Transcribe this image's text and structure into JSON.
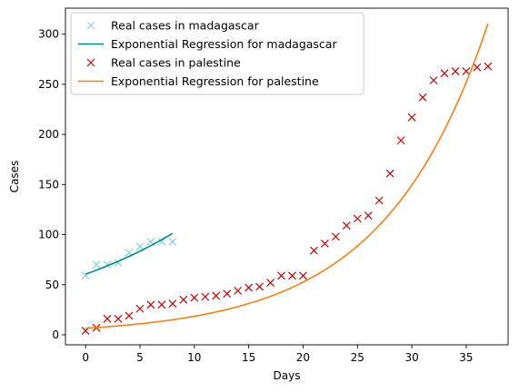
{
  "chart_data": {
    "type": "scatter",
    "xlabel": "Days",
    "ylabel": "Cases",
    "xlim": [
      -1.85,
      38.85
    ],
    "ylim": [
      -10,
      326
    ],
    "xticks": [
      0,
      5,
      10,
      15,
      20,
      25,
      30,
      35
    ],
    "yticks": [
      0,
      50,
      100,
      150,
      200,
      250,
      300
    ],
    "grid": false,
    "legend_position": "top-left",
    "series": [
      {
        "name": "Real cases in madagascar",
        "kind": "points",
        "marker": "x",
        "color": "#87ceeb",
        "x": [
          0,
          1,
          2,
          3,
          4,
          5,
          6,
          7,
          8
        ],
        "y": [
          59,
          70,
          70,
          72,
          82,
          88,
          93,
          93,
          93
        ]
      },
      {
        "name": "Exponential Regression for madagascar",
        "kind": "curve",
        "color": "#008b8b",
        "model": {
          "a": 60.5,
          "b": 0.0644
        },
        "x_range": [
          0,
          8
        ]
      },
      {
        "name": "Real cases in palestine",
        "kind": "points",
        "marker": "x",
        "color": "#d00000",
        "x": [
          0,
          1,
          2,
          3,
          4,
          5,
          6,
          7,
          8,
          9,
          10,
          11,
          12,
          13,
          14,
          15,
          16,
          17,
          18,
          19,
          20,
          21,
          22,
          23,
          24,
          25,
          26,
          27,
          28,
          29,
          30,
          31,
          32,
          33,
          34,
          35,
          36,
          37
        ],
        "y": [
          4,
          7,
          16,
          16,
          19,
          26,
          30,
          30,
          31,
          35,
          37,
          38,
          39,
          41,
          44,
          47,
          48,
          52,
          59,
          59,
          59,
          84,
          91,
          98,
          109,
          116,
          119,
          134,
          161,
          194,
          217,
          237,
          254,
          261,
          263,
          263,
          267,
          268
        ]
      },
      {
        "name": "Exponential Regression for palestine",
        "kind": "curve",
        "color": "#ff7f0e",
        "model": {
          "a": 6.5,
          "b": 0.1045
        },
        "x_range": [
          0,
          37
        ]
      }
    ]
  }
}
